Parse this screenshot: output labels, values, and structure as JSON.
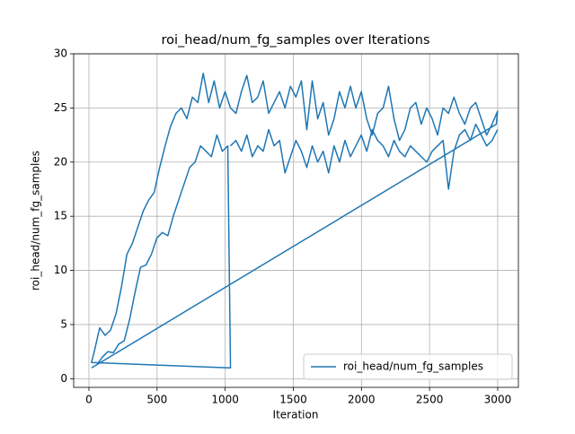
{
  "chart_data": {
    "type": "line",
    "title": "roi_head/num_fg_samples over Iterations",
    "x_label": "Iteration",
    "y_label": "roi_head/num_fg_samples",
    "x": [
      19,
      59,
      99,
      139,
      179,
      219,
      259,
      299,
      339,
      379,
      419,
      459,
      499,
      539,
      579,
      619,
      659,
      699,
      739,
      779,
      819,
      859,
      899,
      939,
      979,
      1019,
      1039,
      19,
      39,
      79,
      119,
      159,
      199,
      239,
      279,
      319,
      359,
      399,
      439,
      479,
      519,
      559,
      599,
      639,
      679,
      719,
      759,
      799,
      839,
      879,
      919,
      959,
      999,
      1039,
      1079,
      1119,
      1159,
      1199,
      1239,
      1279,
      1319,
      1359,
      1399,
      1439,
      1479,
      1519,
      1559,
      1599,
      1639,
      1679,
      1719,
      1759,
      1799,
      1839,
      1879,
      1919,
      1959,
      1999,
      2039,
      2079,
      2119,
      2159,
      2199,
      2239,
      2279,
      2319,
      2359,
      2399,
      2439,
      2479,
      2519,
      2559,
      2599,
      2639,
      2679,
      2719,
      2759,
      2799,
      2839,
      2879,
      2919,
      2959,
      2999,
      2990,
      59,
      1039,
      1039,
      1079,
      1119,
      1159,
      1199,
      1239,
      1279,
      1319,
      1359,
      1399,
      1439,
      1479,
      1519,
      1559,
      1599,
      1639,
      1679,
      1719,
      1759,
      1799,
      1839,
      1879,
      1919,
      1959,
      1999,
      2039,
      2079,
      2119,
      2159,
      2199,
      2239,
      2279,
      2319,
      2359,
      2399,
      2439,
      2479,
      2519,
      2559,
      2599,
      2639,
      2679,
      2719,
      2759,
      2799,
      2839,
      2879,
      2919,
      2959,
      2999
    ],
    "series": [
      {
        "name": "roi_head/num_fg_samples",
        "color": "#1f77b4",
        "values": [
          1.0,
          1.3,
          2.0,
          2.5,
          2.4,
          3.2,
          3.5,
          5.5,
          8.0,
          10.3,
          10.5,
          11.5,
          13.0,
          13.5,
          13.2,
          15.0,
          16.5,
          18.0,
          19.5,
          20.0,
          21.5,
          21.0,
          20.5,
          22.5,
          21.0,
          21.5,
          1.0,
          1.5,
          2.5,
          4.7,
          4.0,
          4.5,
          6.0,
          8.5,
          11.5,
          12.5,
          14.0,
          15.5,
          16.5,
          17.2,
          19.5,
          21.5,
          23.3,
          24.5,
          25.0,
          24.0,
          26.0,
          25.5,
          28.2,
          25.5,
          27.5,
          25.0,
          26.5,
          25.0,
          24.5,
          26.5,
          28.0,
          25.5,
          26.0,
          27.5,
          24.5,
          25.5,
          26.5,
          25.0,
          27.0,
          26.0,
          27.5,
          23.0,
          27.5,
          24.0,
          25.5,
          22.5,
          24.0,
          26.5,
          25.0,
          27.0,
          25.0,
          26.5,
          24.0,
          22.5,
          24.5,
          25.0,
          27.0,
          24.0,
          22.0,
          23.0,
          25.0,
          25.5,
          23.5,
          25.0,
          24.0,
          22.5,
          25.0,
          24.5,
          26.0,
          24.5,
          23.5,
          25.0,
          25.5,
          24.0,
          22.5,
          23.5,
          24.7,
          23.5,
          1.3,
          null,
          21.5,
          22.0,
          21.0,
          22.5,
          20.5,
          21.5,
          21.0,
          23.0,
          21.5,
          22.0,
          19.0,
          20.5,
          22.0,
          21.0,
          19.5,
          21.5,
          20.0,
          21.0,
          19.0,
          21.5,
          20.0,
          22.0,
          20.5,
          21.5,
          22.5,
          21.0,
          23.0,
          22.0,
          21.5,
          20.5,
          22.0,
          21.0,
          20.5,
          21.5,
          21.0,
          20.5,
          20.0,
          21.0,
          21.5,
          22.0,
          17.5,
          21.0,
          22.5,
          23.0,
          22.0,
          23.5,
          22.5,
          21.5,
          22.0,
          23.0
        ]
      }
    ],
    "xlim": [
      -112,
      3152
    ],
    "ylim": [
      -0.8,
      30
    ],
    "xticks": [
      0,
      500,
      1000,
      1500,
      2000,
      2500,
      3000
    ],
    "yticks": [
      0,
      5,
      10,
      15,
      20,
      25,
      30
    ],
    "grid": true,
    "legend": "lower right"
  }
}
